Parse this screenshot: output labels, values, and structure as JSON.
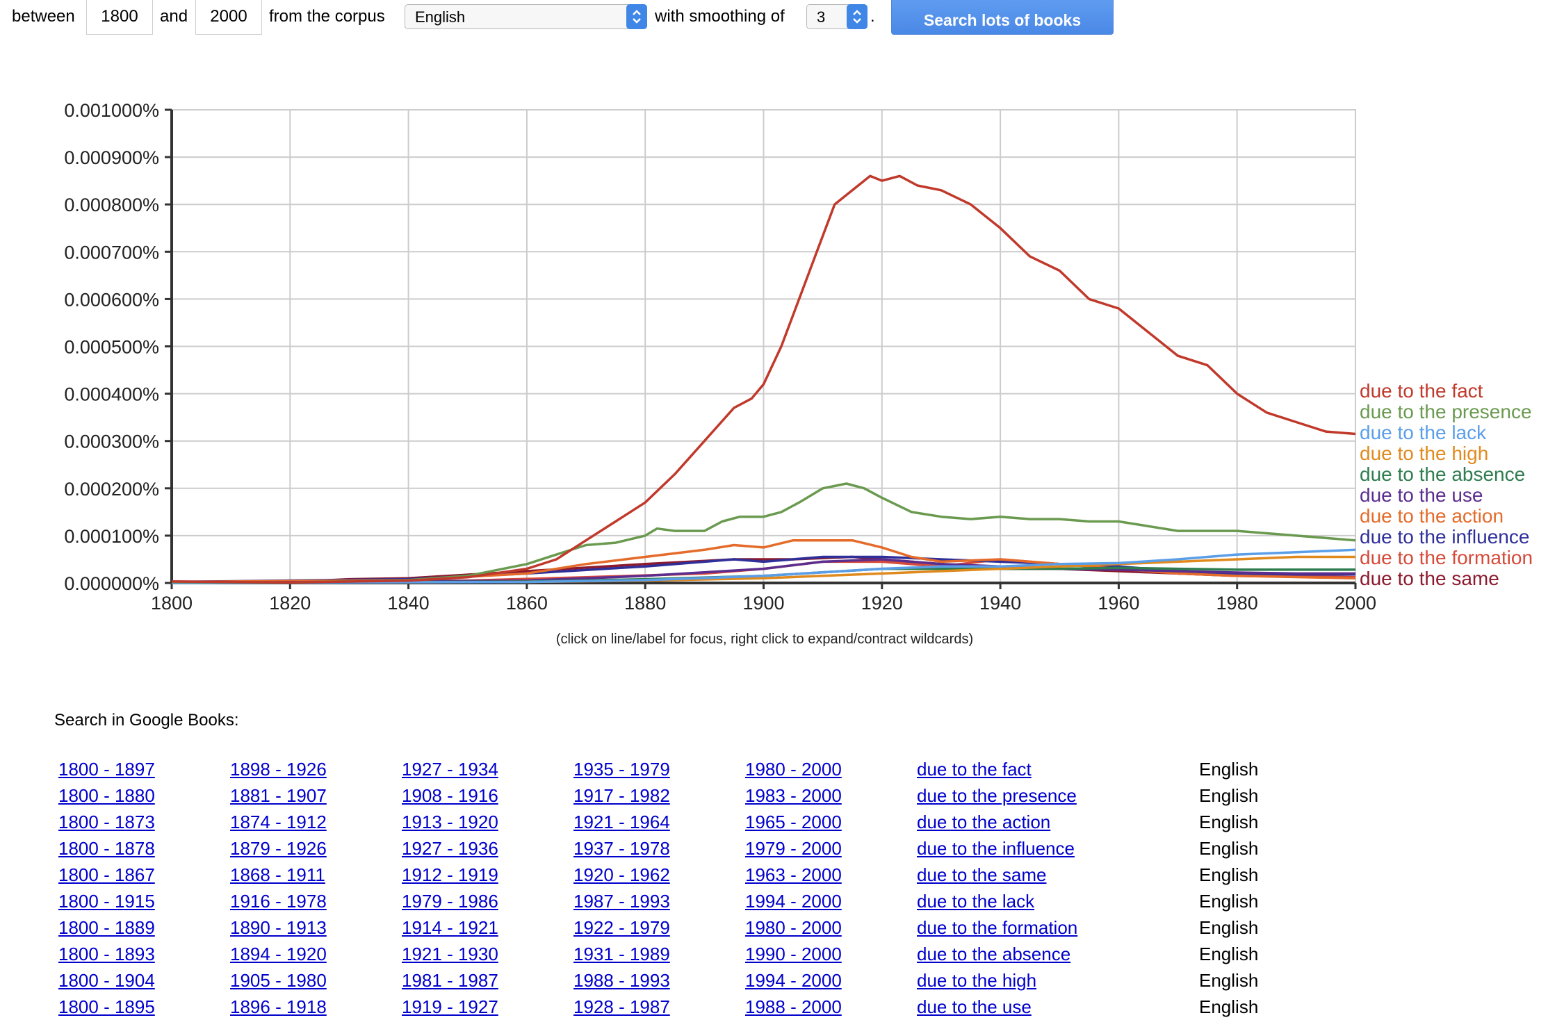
{
  "controls": {
    "between_label": "between",
    "start_year": "1800",
    "and_label": "and",
    "end_year": "2000",
    "corpus_label": "from the corpus",
    "corpus_value": "English",
    "smoothing_label": "with smoothing of",
    "smoothing_value": "3",
    "period": ".",
    "search_button": "Search lots of books"
  },
  "chart_data": {
    "type": "line",
    "xlim": [
      1800,
      2000
    ],
    "ylim": [
      0,
      0.001
    ],
    "x_ticks": [
      "1800",
      "1820",
      "1840",
      "1860",
      "1880",
      "1900",
      "1920",
      "1940",
      "1960",
      "1980",
      "2000"
    ],
    "y_ticks": [
      "0.000000%",
      "0.000100%",
      "0.000200%",
      "0.000300%",
      "0.000400%",
      "0.000500%",
      "0.000600%",
      "0.000700%",
      "0.000800%",
      "0.000900%",
      "0.001000%"
    ],
    "grid": true,
    "legend_placement": "right",
    "series": [
      {
        "name": "due to the fact",
        "color": "#c0392b",
        "points": [
          [
            1800,
            3e-06
          ],
          [
            1820,
            1e-06
          ],
          [
            1840,
            5e-06
          ],
          [
            1850,
            1.2e-05
          ],
          [
            1860,
            3e-05
          ],
          [
            1865,
            5e-05
          ],
          [
            1870,
            9e-05
          ],
          [
            1875,
            0.00013
          ],
          [
            1880,
            0.00017
          ],
          [
            1885,
            0.00023
          ],
          [
            1890,
            0.0003
          ],
          [
            1895,
            0.00037
          ],
          [
            1898,
            0.00039
          ],
          [
            1900,
            0.00042
          ],
          [
            1903,
            0.0005
          ],
          [
            1906,
            0.0006
          ],
          [
            1909,
            0.0007
          ],
          [
            1912,
            0.0008
          ],
          [
            1915,
            0.00083
          ],
          [
            1918,
            0.00086
          ],
          [
            1920,
            0.00085
          ],
          [
            1923,
            0.00086
          ],
          [
            1926,
            0.00084
          ],
          [
            1930,
            0.00083
          ],
          [
            1935,
            0.0008
          ],
          [
            1940,
            0.00075
          ],
          [
            1945,
            0.00069
          ],
          [
            1950,
            0.00066
          ],
          [
            1955,
            0.0006
          ],
          [
            1960,
            0.00058
          ],
          [
            1965,
            0.00053
          ],
          [
            1970,
            0.00048
          ],
          [
            1975,
            0.00046
          ],
          [
            1980,
            0.0004
          ],
          [
            1985,
            0.00036
          ],
          [
            1990,
            0.00034
          ],
          [
            1995,
            0.00032
          ],
          [
            2000,
            0.000315
          ]
        ]
      },
      {
        "name": "due to the presence",
        "color": "#6a9a4f",
        "points": [
          [
            1800,
            2e-06
          ],
          [
            1820,
            1e-06
          ],
          [
            1840,
            6e-06
          ],
          [
            1850,
            1.5e-05
          ],
          [
            1860,
            4e-05
          ],
          [
            1865,
            6e-05
          ],
          [
            1870,
            8e-05
          ],
          [
            1875,
            8.5e-05
          ],
          [
            1880,
            0.0001
          ],
          [
            1882,
            0.000115
          ],
          [
            1885,
            0.00011
          ],
          [
            1890,
            0.00011
          ],
          [
            1893,
            0.00013
          ],
          [
            1896,
            0.00014
          ],
          [
            1900,
            0.00014
          ],
          [
            1903,
            0.00015
          ],
          [
            1906,
            0.00017
          ],
          [
            1910,
            0.0002
          ],
          [
            1914,
            0.00021
          ],
          [
            1917,
            0.0002
          ],
          [
            1920,
            0.00018
          ],
          [
            1925,
            0.00015
          ],
          [
            1930,
            0.00014
          ],
          [
            1935,
            0.000135
          ],
          [
            1940,
            0.00014
          ],
          [
            1945,
            0.000135
          ],
          [
            1950,
            0.000135
          ],
          [
            1955,
            0.00013
          ],
          [
            1960,
            0.00013
          ],
          [
            1965,
            0.00012
          ],
          [
            1970,
            0.00011
          ],
          [
            1980,
            0.00011
          ],
          [
            1990,
            0.0001
          ],
          [
            2000,
            9e-05
          ]
        ]
      },
      {
        "name": "due to the lack",
        "color": "#5b9ee8",
        "points": [
          [
            1800,
            0.0
          ],
          [
            1860,
            2e-06
          ],
          [
            1880,
            6e-06
          ],
          [
            1900,
            1.5e-05
          ],
          [
            1920,
            3e-05
          ],
          [
            1930,
            3.5e-05
          ],
          [
            1940,
            3.5e-05
          ],
          [
            1950,
            4e-05
          ],
          [
            1960,
            4.2e-05
          ],
          [
            1970,
            5e-05
          ],
          [
            1980,
            6e-05
          ],
          [
            1990,
            6.5e-05
          ],
          [
            2000,
            7e-05
          ]
        ]
      },
      {
        "name": "due to the high",
        "color": "#e08a1e",
        "points": [
          [
            1800,
            0.0
          ],
          [
            1860,
            2e-06
          ],
          [
            1880,
            5e-06
          ],
          [
            1900,
            1e-05
          ],
          [
            1920,
            2e-05
          ],
          [
            1930,
            2.5e-05
          ],
          [
            1940,
            3e-05
          ],
          [
            1950,
            3.5e-05
          ],
          [
            1960,
            4e-05
          ],
          [
            1970,
            4.5e-05
          ],
          [
            1980,
            5e-05
          ],
          [
            1990,
            5.5e-05
          ],
          [
            2000,
            5.5e-05
          ]
        ]
      },
      {
        "name": "due to the absence",
        "color": "#2e7d4f",
        "points": [
          [
            1800,
            0.0
          ],
          [
            1860,
            3e-06
          ],
          [
            1880,
            8e-06
          ],
          [
            1900,
            1.5e-05
          ],
          [
            1920,
            3e-05
          ],
          [
            1930,
            3e-05
          ],
          [
            1940,
            3e-05
          ],
          [
            1950,
            3e-05
          ],
          [
            1960,
            3.2e-05
          ],
          [
            1970,
            3e-05
          ],
          [
            1980,
            2.8e-05
          ],
          [
            1990,
            2.8e-05
          ],
          [
            2000,
            2.8e-05
          ]
        ]
      },
      {
        "name": "due to the use",
        "color": "#5b2d8e",
        "points": [
          [
            1800,
            0.0
          ],
          [
            1860,
            5e-06
          ],
          [
            1880,
            1.5e-05
          ],
          [
            1900,
            3e-05
          ],
          [
            1910,
            4.5e-05
          ],
          [
            1920,
            5e-05
          ],
          [
            1930,
            4e-05
          ],
          [
            1940,
            3.5e-05
          ],
          [
            1950,
            3e-05
          ],
          [
            1960,
            2.8e-05
          ],
          [
            1970,
            2.5e-05
          ],
          [
            1980,
            2.2e-05
          ],
          [
            1990,
            2e-05
          ],
          [
            2000,
            2e-05
          ]
        ]
      },
      {
        "name": "due to the action",
        "color": "#e46b2a",
        "points": [
          [
            1800,
            2e-06
          ],
          [
            1840,
            6e-06
          ],
          [
            1860,
            2e-05
          ],
          [
            1870,
            4e-05
          ],
          [
            1880,
            5.5e-05
          ],
          [
            1890,
            7e-05
          ],
          [
            1895,
            8e-05
          ],
          [
            1900,
            7.5e-05
          ],
          [
            1905,
            9e-05
          ],
          [
            1910,
            9e-05
          ],
          [
            1915,
            9e-05
          ],
          [
            1920,
            7.5e-05
          ],
          [
            1925,
            5.5e-05
          ],
          [
            1930,
            4.5e-05
          ],
          [
            1940,
            5e-05
          ],
          [
            1950,
            4e-05
          ],
          [
            1960,
            3e-05
          ],
          [
            1970,
            2e-05
          ],
          [
            1980,
            1.5e-05
          ],
          [
            2000,
            1e-05
          ]
        ]
      },
      {
        "name": "due to the influence",
        "color": "#2f2f9a",
        "points": [
          [
            1800,
            2e-06
          ],
          [
            1840,
            8e-06
          ],
          [
            1860,
            2e-05
          ],
          [
            1880,
            3.5e-05
          ],
          [
            1895,
            5e-05
          ],
          [
            1900,
            4.5e-05
          ],
          [
            1910,
            5.5e-05
          ],
          [
            1920,
            5.5e-05
          ],
          [
            1930,
            5e-05
          ],
          [
            1940,
            4.5e-05
          ],
          [
            1950,
            4e-05
          ],
          [
            1960,
            3.5e-05
          ],
          [
            1970,
            2.5e-05
          ],
          [
            1980,
            2e-05
          ],
          [
            1990,
            1.8e-05
          ],
          [
            2000,
            1.8e-05
          ]
        ]
      },
      {
        "name": "due to the formation",
        "color": "#d64a3a",
        "points": [
          [
            1800,
            1e-06
          ],
          [
            1850,
            5e-06
          ],
          [
            1870,
            1.2e-05
          ],
          [
            1890,
            2e-05
          ],
          [
            1900,
            3e-05
          ],
          [
            1910,
            4.5e-05
          ],
          [
            1920,
            4.5e-05
          ],
          [
            1930,
            3.5e-05
          ],
          [
            1940,
            5e-05
          ],
          [
            1950,
            4e-05
          ],
          [
            1960,
            3e-05
          ],
          [
            1970,
            2e-05
          ],
          [
            1980,
            1.5e-05
          ],
          [
            2000,
            1.2e-05
          ]
        ]
      },
      {
        "name": "due to the same",
        "color": "#8b1a2e",
        "points": [
          [
            1800,
            3e-06
          ],
          [
            1820,
            2e-06
          ],
          [
            1830,
            8e-06
          ],
          [
            1840,
            1e-05
          ],
          [
            1860,
            2.5e-05
          ],
          [
            1880,
            4e-05
          ],
          [
            1895,
            5e-05
          ],
          [
            1905,
            5e-05
          ],
          [
            1915,
            5.5e-05
          ],
          [
            1920,
            5e-05
          ],
          [
            1930,
            4e-05
          ],
          [
            1940,
            3e-05
          ],
          [
            1950,
            3e-05
          ],
          [
            1960,
            2.5e-05
          ],
          [
            1970,
            2e-05
          ],
          [
            1980,
            1.5e-05
          ],
          [
            2000,
            1.2e-05
          ]
        ]
      }
    ]
  },
  "hint": "(click on line/label for focus, right click to expand/contract wildcards)",
  "books": {
    "heading": "Search in Google Books:",
    "rows": [
      [
        "1800 - 1897",
        "1898 - 1926",
        "1927 - 1934",
        "1935 - 1979",
        "1980 - 2000",
        "due to the fact",
        "English"
      ],
      [
        "1800 - 1880",
        "1881 - 1907",
        "1908 - 1916",
        "1917 - 1982",
        "1983 - 2000",
        "due to the presence",
        "English"
      ],
      [
        "1800 - 1873",
        "1874 - 1912",
        "1913 - 1920",
        "1921 - 1964",
        "1965 - 2000",
        "due to the action",
        "English"
      ],
      [
        "1800 - 1878",
        "1879 - 1926",
        "1927 - 1936",
        "1937 - 1978",
        "1979 - 2000",
        "due to the influence",
        "English"
      ],
      [
        "1800 - 1867",
        "1868 - 1911",
        "1912 - 1919",
        "1920 - 1962",
        "1963 - 2000",
        "due to the same",
        "English"
      ],
      [
        "1800 - 1915",
        "1916 - 1978",
        "1979 - 1986",
        "1987 - 1993",
        "1994 - 2000",
        "due to the lack",
        "English"
      ],
      [
        "1800 - 1889",
        "1890 - 1913",
        "1914 - 1921",
        "1922 - 1979",
        "1980 - 2000",
        "due to the formation",
        "English"
      ],
      [
        "1800 - 1893",
        "1894 - 1920",
        "1921 - 1930",
        "1931 - 1989",
        "1990 - 2000",
        "due to the absence",
        "English"
      ],
      [
        "1800 - 1904",
        "1905 - 1980",
        "1981 - 1987",
        "1988 - 1993",
        "1994 - 2000",
        "due to the high",
        "English"
      ],
      [
        "1800 - 1895",
        "1896 - 1918",
        "1919 - 1927",
        "1928 - 1987",
        "1988 - 2000",
        "due to the use",
        "English"
      ]
    ]
  }
}
